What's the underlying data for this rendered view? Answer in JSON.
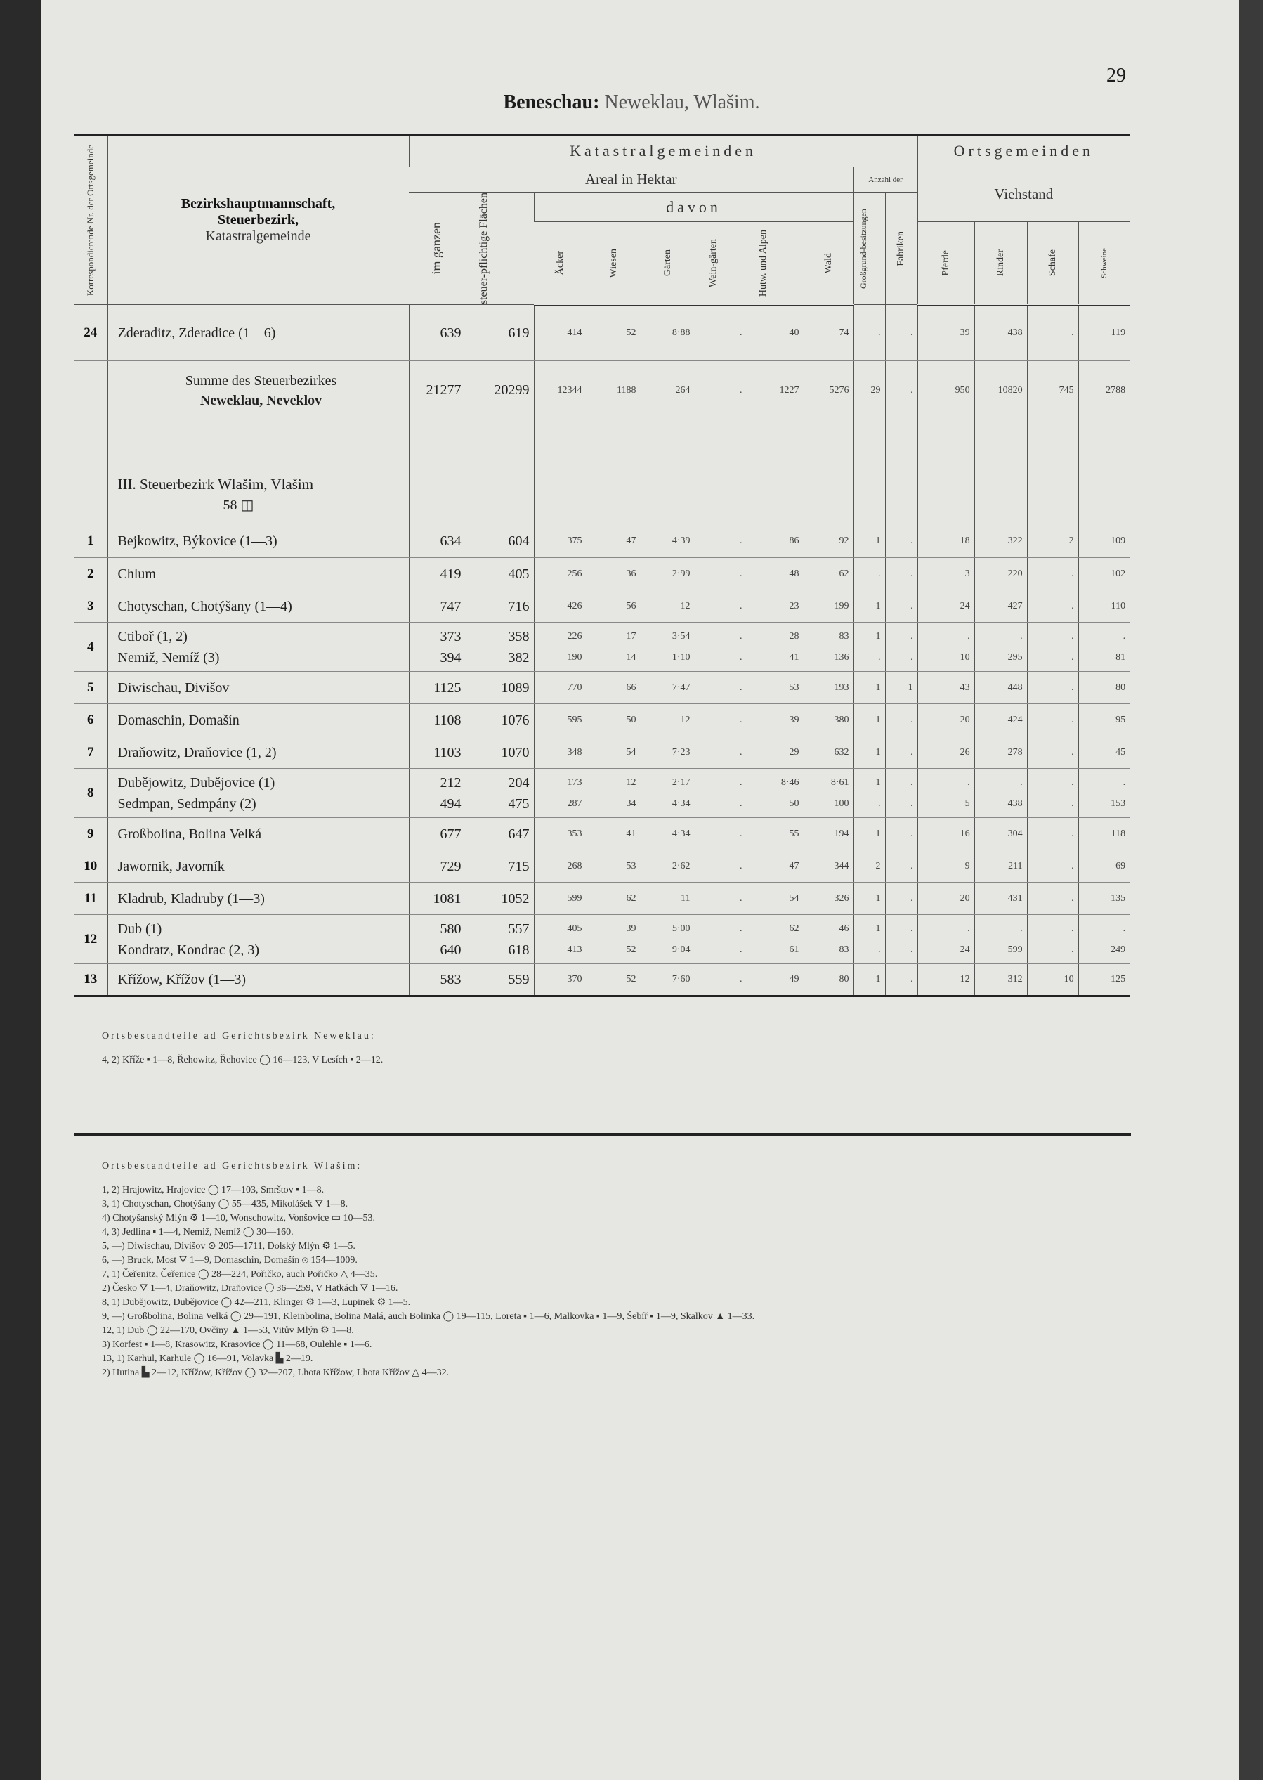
{
  "header": {
    "title_bold": "Beneschau:",
    "title_rest": "Neweklau, Wlašim.",
    "page_number": "29"
  },
  "table": {
    "head": {
      "corr": "Korrespondierende Nr. der Ortsgemeinde",
      "district": "Bezirkshauptmannschaft,",
      "tax_district": "Steuerbezirk,",
      "cadastral": "Katastralgemeinde",
      "cadastral_group": "Katastralgemeinden",
      "municipal_group": "Ortsgemeinden",
      "area": "Areal in Hektar",
      "count": "Anzahl der",
      "livestock": "Viehstand",
      "total": "im ganzen",
      "taxable": "steuer-pflichtige Flächen",
      "of_which": "davon",
      "fields": "Äcker",
      "meadows": "Wiesen",
      "gardens": "Gärten",
      "vineyards": "Wein-gärten",
      "pastures": "Hutw. und Alpen",
      "forest": "Wald",
      "estates": "Großgrund-besitzungen",
      "factories": "Fabriken",
      "horses": "Pferde",
      "cattle": "Rinder",
      "sheep": "Schafe",
      "pigs": "Schweine"
    },
    "rows": [
      {
        "no": "24",
        "entries": [
          {
            "name": "Zderaditz, Zderadice (1—6)",
            "values": [
              "639",
              "619",
              "414",
              "52",
              "8·88",
              ".",
              "40",
              "74",
              ".",
              ".",
              "39",
              "438",
              ".",
              "119"
            ]
          }
        ]
      },
      {
        "label": "Summe des Steuerbezirkes",
        "name": "Neweklau, Neveklov",
        "values": [
          "21277",
          "20299",
          "12344",
          "1188",
          "264",
          ".",
          "1227",
          "5276",
          "29",
          ".",
          "950",
          "10820",
          "745",
          "2788"
        ]
      },
      {
        "heading": "III. Steuerbezirk Wlašim, Vlašim",
        "note": "58 ◫"
      },
      {
        "no": "1",
        "entries": [
          {
            "name": "Bejkowitz, Býkovice (1—3)",
            "values": [
              "634",
              "604",
              "375",
              "47",
              "4·39",
              ".",
              "86",
              "92",
              "1",
              ".",
              "18",
              "322",
              "2",
              "109"
            ]
          }
        ]
      },
      {
        "no": "2",
        "entries": [
          {
            "name": "Chlum",
            "values": [
              "419",
              "405",
              "256",
              "36",
              "2·99",
              ".",
              "48",
              "62",
              ".",
              ".",
              "3",
              "220",
              ".",
              "102"
            ]
          }
        ]
      },
      {
        "no": "3",
        "entries": [
          {
            "name": "Chotyschan, Chotýšany (1—4)",
            "values": [
              "747",
              "716",
              "426",
              "56",
              "12",
              ".",
              "23",
              "199",
              "1",
              ".",
              "24",
              "427",
              ".",
              "110"
            ]
          }
        ]
      },
      {
        "no": "4",
        "entries": [
          {
            "name": "Ctiboř (1, 2)",
            "values": [
              "373",
              "358",
              "226",
              "17",
              "3·54",
              ".",
              "28",
              "83",
              "1",
              ".",
              ".",
              ".",
              ".",
              "."
            ]
          },
          {
            "name": "Nemiž, Nemíž (3)",
            "values": [
              "394",
              "382",
              "190",
              "14",
              "1·10",
              ".",
              "41",
              "136",
              ".",
              ".",
              "10",
              "295",
              ".",
              "81"
            ]
          }
        ]
      },
      {
        "no": "5",
        "entries": [
          {
            "name": "Diwischau, Divišov",
            "values": [
              "1125",
              "1089",
              "770",
              "66",
              "7·47",
              ".",
              "53",
              "193",
              "1",
              "1",
              "43",
              "448",
              ".",
              "80"
            ]
          }
        ]
      },
      {
        "no": "6",
        "entries": [
          {
            "name": "Domaschin, Domašín",
            "values": [
              "1108",
              "1076",
              "595",
              "50",
              "12",
              ".",
              "39",
              "380",
              "1",
              ".",
              "20",
              "424",
              ".",
              "95"
            ]
          }
        ]
      },
      {
        "no": "7",
        "entries": [
          {
            "name": "Draňowitz, Draňovice (1, 2)",
            "values": [
              "1103",
              "1070",
              "348",
              "54",
              "7·23",
              ".",
              "29",
              "632",
              "1",
              ".",
              "26",
              "278",
              ".",
              "45"
            ]
          }
        ]
      },
      {
        "no": "8",
        "entries": [
          {
            "name": "Dubějowitz, Dubějovice (1)",
            "values": [
              "212",
              "204",
              "173",
              "12",
              "2·17",
              ".",
              "8·46",
              "8·61",
              "1",
              ".",
              ".",
              ".",
              ".",
              "."
            ]
          },
          {
            "name": "Sedmpan, Sedmpány (2)",
            "values": [
              "494",
              "475",
              "287",
              "34",
              "4·34",
              ".",
              "50",
              "100",
              ".",
              ".",
              "5",
              "438",
              ".",
              "153"
            ]
          }
        ]
      },
      {
        "no": "9",
        "entries": [
          {
            "name": "Großbolina, Bolina Velká",
            "values": [
              "677",
              "647",
              "353",
              "41",
              "4·34",
              ".",
              "55",
              "194",
              "1",
              ".",
              "16",
              "304",
              ".",
              "118"
            ]
          }
        ]
      },
      {
        "no": "10",
        "entries": [
          {
            "name": "Jawornik, Javorník",
            "values": [
              "729",
              "715",
              "268",
              "53",
              "2·62",
              ".",
              "47",
              "344",
              "2",
              ".",
              "9",
              "211",
              ".",
              "69"
            ]
          }
        ]
      },
      {
        "no": "11",
        "entries": [
          {
            "name": "Kladrub, Kladruby (1—3)",
            "values": [
              "1081",
              "1052",
              "599",
              "62",
              "11",
              ".",
              "54",
              "326",
              "1",
              ".",
              "20",
              "431",
              ".",
              "135"
            ]
          }
        ]
      },
      {
        "no": "12",
        "entries": [
          {
            "name": "Dub (1)",
            "values": [
              "580",
              "557",
              "405",
              "39",
              "5·00",
              ".",
              "62",
              "46",
              "1",
              ".",
              ".",
              ".",
              ".",
              "."
            ]
          },
          {
            "name": "Kondratz, Kondrac (2, 3)",
            "values": [
              "640",
              "618",
              "413",
              "52",
              "9·04",
              ".",
              "61",
              "83",
              ".",
              ".",
              "24",
              "599",
              ".",
              "249"
            ]
          }
        ]
      },
      {
        "no": "13",
        "entries": [
          {
            "name": "Křížow, Křížov (1—3)",
            "values": [
              "583",
              "559",
              "370",
              "52",
              "7·60",
              ".",
              "49",
              "80",
              "1",
              ".",
              "12",
              "312",
              "10",
              "125"
            ]
          }
        ]
      }
    ]
  },
  "footnotes": [
    {
      "heading": "Ortsbestandteile ad Gerichtsbezirk Neweklau:",
      "lines": [
        "4, 2) Kříže ▪ 1—8, Řehowitz, Řehovice ◯ 16—123, V Lesích ▪ 2—12."
      ]
    },
    {
      "heading": "Ortsbestandteile ad Gerichtsbezirk Wlašim:",
      "lines": [
        "1, 2) Hrajowitz, Hrajovice ◯ 17—103, Smrštov ▪ 1—8.",
        "3, 1) Chotyschan, Chotýšany ◯ 55—435, Mikolášek ⛛ 1—8.",
        "4) Chotyšanský Mlýn ⚙ 1—10, Wonschowitz, Vonšovice ▭ 10—53.",
        "4, 3) Jedlina ▪ 1—4, Nemiž, Nemíž ◯ 30—160.",
        "5, —) Diwischau, Divišov ⊙ 205—1711, Dolský Mlýn ⚙ 1—5.",
        "6, —) Bruck, Most ⛛ 1—9, Domaschin, Domašín ⊙ 154—1009.",
        "7, 1) Čeřenitz, Čeřenice ◯ 28—224, Pořičko, auch Pořičko △ 4—35.",
        "2) Česko ⛛ 1—4, Draňowitz, Draňovice ◯ 36—259, V Hatkách ⛛ 1—16.",
        "8, 1) Dubějowitz, Dubějovice ◯ 42—211, Klinger ⚙ 1—3, Lupinek ⚙ 1—5.",
        "9, —) Großbolina, Bolina Velká ◯ 29—191, Kleinbolina, Bolina Malá, auch Bolinka ◯ 19—115, Loreta ▪ 1—6, Malkovka ▪ 1—9, Šebíř ▪ 1—9, Skalkov ▲ 1—33.",
        "12, 1) Dub ◯ 22—170, Ovčiny ▲ 1—53, Vitův Mlýn ⚙ 1—8.",
        "3) Korfest ▪ 1—8, Krasowitz, Krasovice ◯ 11—68, Oulehle ▪ 1—6.",
        "13, 1) Karhul, Karhule ◯ 16—91, Volavka ▙ 2—19.",
        "2) Hutina ▙ 2—12, Křížow, Křížov ◯ 32—207, Lhota Křížow, Lhota Křížov △ 4—32."
      ]
    }
  ]
}
